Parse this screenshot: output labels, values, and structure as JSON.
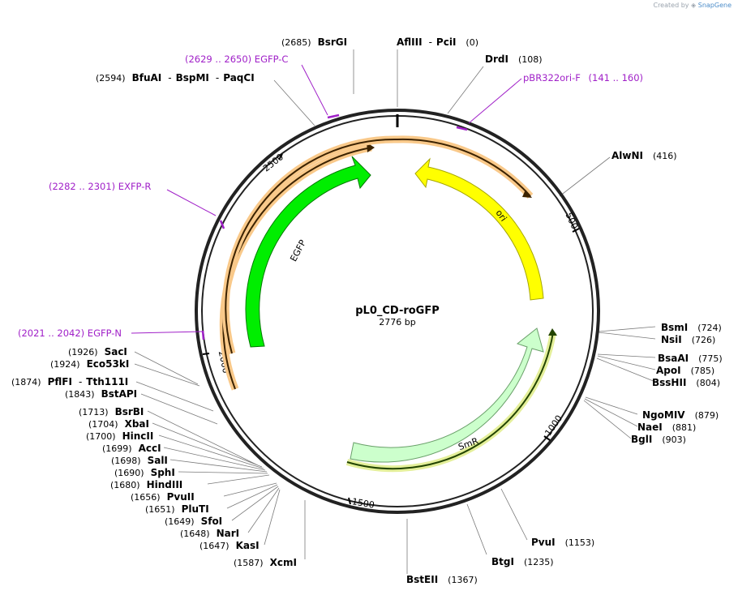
{
  "credit": {
    "prefix": "Created by",
    "brand": "SnapGene"
  },
  "plasmid": {
    "name": "pL0_CD-roGFP",
    "size_label": "2776 bp",
    "length": 2776
  },
  "ticks": [
    {
      "label": "500",
      "pos": 500
    },
    {
      "label": "1000",
      "pos": 1000
    },
    {
      "label": "1500",
      "pos": 1500
    },
    {
      "label": "2000",
      "pos": 2000
    },
    {
      "label": "2500",
      "pos": 2500
    }
  ],
  "features": [
    {
      "name": "ori",
      "color": "#ffff00",
      "stroke": "#b8b800"
    },
    {
      "name": "SmR",
      "color": "#ccffcc",
      "stroke": "#7ab07a"
    },
    {
      "name": "EGFP",
      "color": "#00ee00",
      "stroke": "#008800"
    }
  ],
  "primers": [
    {
      "name": "EGFP-C",
      "range": "(2629 .. 2650)"
    },
    {
      "name": "pBR322ori-F",
      "range": "(141 .. 160)"
    },
    {
      "name": "EXFP-R",
      "range": "(2282 .. 2301)"
    },
    {
      "name": "EGFP-N",
      "range": "(2021 .. 2042)"
    }
  ],
  "sites": [
    {
      "names": [
        "BsrGI"
      ],
      "pos": "(2685)"
    },
    {
      "names": [
        "AflIII",
        "PciI"
      ],
      "pos": "(0)"
    },
    {
      "names": [
        "DrdI"
      ],
      "pos": "(108)"
    },
    {
      "names": [
        "BfuAI",
        "BspMI",
        "PaqCI"
      ],
      "pos": "(2594)"
    },
    {
      "names": [
        "AlwNI"
      ],
      "pos": "(416)"
    },
    {
      "names": [
        "BsmI"
      ],
      "pos": "(724)"
    },
    {
      "names": [
        "NsiI"
      ],
      "pos": "(726)"
    },
    {
      "names": [
        "BsaAI"
      ],
      "pos": "(775)"
    },
    {
      "names": [
        "ApoI"
      ],
      "pos": "(785)"
    },
    {
      "names": [
        "BssHII"
      ],
      "pos": "(804)"
    },
    {
      "names": [
        "NgoMIV"
      ],
      "pos": "(879)"
    },
    {
      "names": [
        "NaeI"
      ],
      "pos": "(881)"
    },
    {
      "names": [
        "BglI"
      ],
      "pos": "(903)"
    },
    {
      "names": [
        "PvuI"
      ],
      "pos": "(1153)"
    },
    {
      "names": [
        "BtgI"
      ],
      "pos": "(1235)"
    },
    {
      "names": [
        "BstEII"
      ],
      "pos": "(1367)"
    },
    {
      "names": [
        "XcmI"
      ],
      "pos": "(1587)"
    },
    {
      "names": [
        "KasI"
      ],
      "pos": "(1647)"
    },
    {
      "names": [
        "NarI"
      ],
      "pos": "(1648)"
    },
    {
      "names": [
        "SfoI"
      ],
      "pos": "(1649)"
    },
    {
      "names": [
        "PluTI"
      ],
      "pos": "(1651)"
    },
    {
      "names": [
        "PvuII"
      ],
      "pos": "(1656)"
    },
    {
      "names": [
        "HindIII"
      ],
      "pos": "(1680)"
    },
    {
      "names": [
        "SphI"
      ],
      "pos": "(1690)"
    },
    {
      "names": [
        "SalI"
      ],
      "pos": "(1698)"
    },
    {
      "names": [
        "AccI"
      ],
      "pos": "(1699)"
    },
    {
      "names": [
        "HincII"
      ],
      "pos": "(1700)"
    },
    {
      "names": [
        "XbaI"
      ],
      "pos": "(1704)"
    },
    {
      "names": [
        "BsrBI"
      ],
      "pos": "(1713)"
    },
    {
      "names": [
        "BstAPI"
      ],
      "pos": "(1843)"
    },
    {
      "names": [
        "PflFI",
        "Tth111I"
      ],
      "pos": "(1874)"
    },
    {
      "names": [
        "Eco53kI"
      ],
      "pos": "(1924)"
    },
    {
      "names": [
        "SacI"
      ],
      "pos": "(1926)"
    }
  ]
}
